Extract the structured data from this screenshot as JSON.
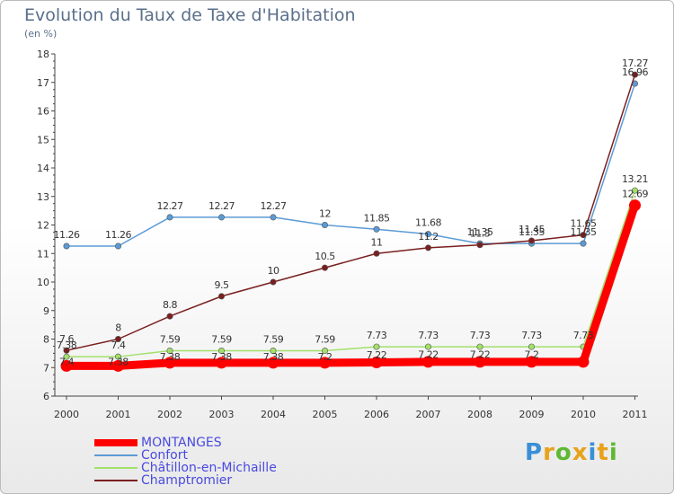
{
  "chart_data": {
    "type": "line",
    "title": "Evolution du Taux de Taxe d'Habitation",
    "subtitle": "(en %)",
    "categories": [
      "2000",
      "2001",
      "2002",
      "2003",
      "2004",
      "2005",
      "2006",
      "2007",
      "2008",
      "2009",
      "2010",
      "2011"
    ],
    "ylim": [
      6,
      18
    ],
    "yticks": [
      "6",
      "7",
      "8",
      "9",
      "10",
      "11",
      "12",
      "13",
      "14",
      "15",
      "16",
      "17",
      "18"
    ],
    "grid": false,
    "series": [
      {
        "name": "MONTANGES",
        "color": "#ff0000",
        "values": [
          7.06,
          7.06,
          7.17,
          7.17,
          7.17,
          7.17,
          7.18,
          7.2,
          7.2,
          7.2,
          7.2,
          12.69
        ],
        "labels": [
          "",
          "",
          "",
          "",
          "",
          "",
          "",
          "",
          "",
          "",
          "",
          "12.69"
        ]
      },
      {
        "name": "Confort",
        "color": "#5b9bd5",
        "values": [
          11.26,
          11.26,
          12.27,
          12.27,
          12.27,
          12,
          11.85,
          11.68,
          11.35,
          11.35,
          11.35,
          16.96
        ],
        "labels": [
          "11.26",
          "11.26",
          "12.27",
          "12.27",
          "12.27",
          "12",
          "11.85",
          "11.68",
          "11.35",
          "11.35",
          "11.35",
          "16.96"
        ]
      },
      {
        "name": "Châtillon-en-Michaille",
        "color": "#a3e06b",
        "values": [
          7.38,
          7.38,
          7.59,
          7.59,
          7.59,
          7.59,
          7.73,
          7.73,
          7.73,
          7.73,
          7.73,
          13.21
        ],
        "labels": [
          "7.38",
          "7.4",
          "7.59",
          "7.59",
          "7.59",
          "7.59",
          "7.73",
          "7.73",
          "7.73",
          "7.73",
          "7.73",
          "13.21"
        ]
      },
      {
        "name": "Champtromier",
        "color": "#7a1f1f",
        "values": [
          7.6,
          8,
          8.8,
          9.5,
          10,
          10.5,
          11,
          11.2,
          11.3,
          11.45,
          11.65,
          17.27
        ],
        "labels": [
          "7.6",
          "8",
          "8.8",
          "9.5",
          "10",
          "10.5",
          "11",
          "11.2",
          "11.3",
          "11.45",
          "11.65",
          "17.27"
        ]
      }
    ],
    "overlap_labels": [
      "7.4",
      "7.38",
      "7.38",
      "7.38",
      "7.38",
      "7.2",
      "7.22",
      "7.22",
      "7.22",
      "7.2"
    ]
  },
  "legend": {
    "items": [
      "MONTANGES",
      "Confort",
      "Châtillon-en-Michaille",
      "Champtromier"
    ]
  },
  "logo": {
    "text": "Proxiti"
  }
}
